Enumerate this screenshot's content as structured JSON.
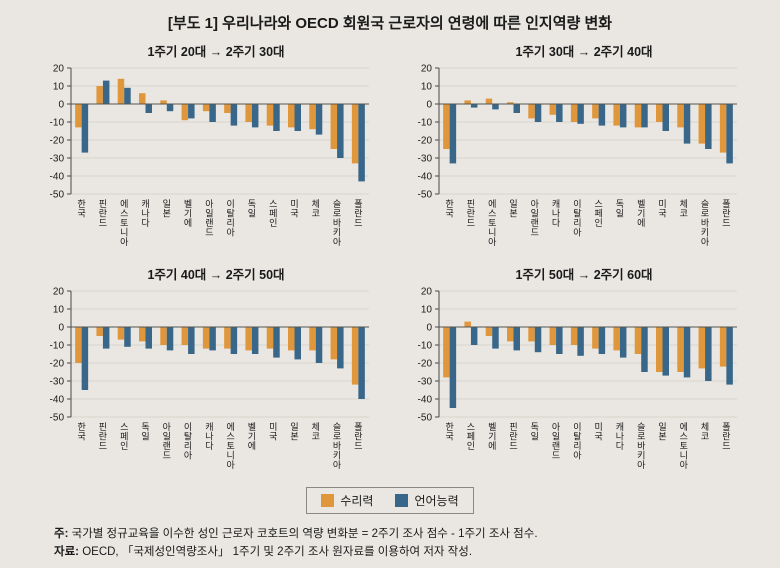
{
  "page": {
    "title": "[부도 1] 우리나라와 OECD 회원국 근로자의 연령에 따른 인지역량 변화",
    "notes": {
      "note1_label": "주:",
      "note1_text": "국가별 정규교육을 이수한 성인 근로자 코호트의 역량 변화분 = 2주기 조사 점수 - 1주기 조사 점수.",
      "note2_label": "자료:",
      "note2_text": "OECD, 「국제성인역량조사」 1주기 및 2주기 조사 원자료를 이용하여 저자 작성."
    }
  },
  "legend": {
    "items": [
      {
        "label": "수리력",
        "color": "#e0973c"
      },
      {
        "label": "언어능력",
        "color": "#39678a"
      }
    ]
  },
  "chart_data": [
    {
      "type": "bar",
      "title": "1주기 20대 → 2주기 30대",
      "categories": [
        "한국",
        "핀란드",
        "에스토니아",
        "캐나다",
        "일본",
        "벨기에",
        "아일랜드",
        "이탈리아",
        "독일",
        "스페인",
        "미국",
        "체코",
        "슬로바키아",
        "폴란드"
      ],
      "series": [
        {
          "name": "수리력",
          "color": "#e0973c",
          "values": [
            -13,
            10,
            14,
            6,
            2,
            -9,
            -4,
            -5,
            -10,
            -12,
            -13,
            -14,
            -25,
            -33
          ]
        },
        {
          "name": "언어능력",
          "color": "#39678a",
          "values": [
            -27,
            13,
            9,
            -5,
            -4,
            -8,
            -10,
            -12,
            -13,
            -15,
            -15,
            -17,
            -30,
            -43
          ]
        }
      ],
      "ylim": [
        -50,
        20
      ],
      "yticks": [
        20,
        10,
        0,
        -10,
        -20,
        -30,
        -40,
        -50
      ],
      "grid": true
    },
    {
      "type": "bar",
      "title": "1주기 30대 → 2주기 40대",
      "categories": [
        "한국",
        "핀란드",
        "에스토니아",
        "일본",
        "아일랜드",
        "캐나다",
        "이탈리아",
        "스페인",
        "독일",
        "벨기에",
        "미국",
        "체코",
        "슬로바키아",
        "폴란드"
      ],
      "series": [
        {
          "name": "수리력",
          "color": "#e0973c",
          "values": [
            -25,
            2,
            3,
            1,
            -8,
            -6,
            -10,
            -8,
            -12,
            -13,
            -10,
            -13,
            -22,
            -27
          ]
        },
        {
          "name": "언어능력",
          "color": "#39678a",
          "values": [
            -33,
            -2,
            -3,
            -5,
            -10,
            -10,
            -11,
            -12,
            -13,
            -13,
            -15,
            -22,
            -25,
            -33
          ]
        }
      ],
      "ylim": [
        -50,
        20
      ],
      "yticks": [
        20,
        10,
        0,
        -10,
        -20,
        -30,
        -40,
        -50
      ],
      "grid": true
    },
    {
      "type": "bar",
      "title": "1주기 40대 → 2주기 50대",
      "categories": [
        "한국",
        "핀란드",
        "스페인",
        "독일",
        "아일랜드",
        "이탈리아",
        "캐나다",
        "에스토니아",
        "벨기에",
        "미국",
        "일본",
        "체코",
        "슬로바키아",
        "폴란드"
      ],
      "series": [
        {
          "name": "수리력",
          "color": "#e0973c",
          "values": [
            -20,
            -5,
            -7,
            -8,
            -10,
            -10,
            -12,
            -12,
            -13,
            -12,
            -13,
            -13,
            -18,
            -32
          ]
        },
        {
          "name": "언어능력",
          "color": "#39678a",
          "values": [
            -35,
            -12,
            -11,
            -12,
            -13,
            -15,
            -13,
            -15,
            -15,
            -17,
            -18,
            -20,
            -23,
            -40
          ]
        }
      ],
      "ylim": [
        -50,
        20
      ],
      "yticks": [
        20,
        10,
        0,
        -10,
        -20,
        -30,
        -40,
        -50
      ],
      "grid": true
    },
    {
      "type": "bar",
      "title": "1주기 50대 → 2주기 60대",
      "categories": [
        "한국",
        "스페인",
        "벨기에",
        "핀란드",
        "독일",
        "아일랜드",
        "이탈리아",
        "미국",
        "캐나다",
        "슬로바키아",
        "일본",
        "에스토니아",
        "체코",
        "폴란드"
      ],
      "series": [
        {
          "name": "수리력",
          "color": "#e0973c",
          "values": [
            -28,
            3,
            -5,
            -8,
            -8,
            -10,
            -10,
            -12,
            -13,
            -15,
            -25,
            -25,
            -23,
            -22
          ]
        },
        {
          "name": "언어능력",
          "color": "#39678a",
          "values": [
            -45,
            -10,
            -12,
            -13,
            -14,
            -15,
            -16,
            -15,
            -17,
            -25,
            -27,
            -28,
            -30,
            -32
          ]
        }
      ],
      "ylim": [
        -50,
        20
      ],
      "yticks": [
        20,
        10,
        0,
        -10,
        -20,
        -30,
        -40,
        -50
      ],
      "grid": true
    }
  ]
}
